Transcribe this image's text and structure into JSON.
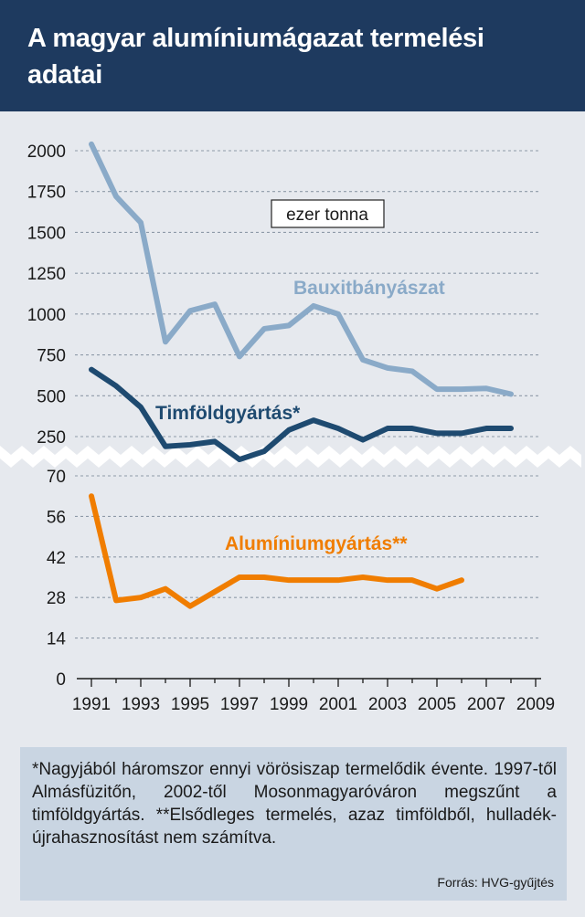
{
  "title": "A magyar alumíniumágazat termelési adatai",
  "unit_label": "ezer tonna",
  "note": "*Nagyjából háromszor ennyi vörösiszap termelődik évente. 1997-től Almásfüzitőn, 2002-től Mosonmagyaróváron megszűnt a timföldgyártás. **Elsődleges termelés, azaz timföldből, hulladék-újrahasznosítást nem számítva.",
  "source": "Forrás: HVG-gyűjtés",
  "colors": {
    "header_bg": "#1e3a5f",
    "bauxit": "#8aaac8",
    "timfold": "#1e4a70",
    "aluminium": "#f07d00",
    "note_bg": "#c9d5e2"
  },
  "chart_data": {
    "type": "line",
    "xlim": [
      1991,
      2009
    ],
    "x_ticks": [
      "1991",
      "1993",
      "1995",
      "1997",
      "1999",
      "2001",
      "2003",
      "2005",
      "2007",
      "2009"
    ],
    "upper_panel": {
      "y_ticks": [
        "250",
        "500",
        "750",
        "1000",
        "1250",
        "1500",
        "1750",
        "2000"
      ],
      "ylim": [
        200,
        2050
      ],
      "series": [
        {
          "name": "Bauxitbányászat",
          "color": "#8aaac8",
          "x": [
            1991,
            1992,
            1993,
            1994,
            1995,
            1996,
            1997,
            1998,
            1999,
            2000,
            2001,
            2002,
            2003,
            2004,
            2005,
            2006,
            2007,
            2008
          ],
          "y": [
            2040,
            1720,
            1560,
            830,
            1020,
            1060,
            740,
            910,
            930,
            1050,
            1000,
            720,
            670,
            650,
            540,
            540,
            545,
            510
          ]
        },
        {
          "name": "Timföldgyártás*",
          "color": "#1e4a70",
          "x": [
            1991,
            1992,
            1993,
            1994,
            1995,
            1996,
            1997,
            1998,
            1999,
            2000,
            2001,
            2002,
            2003,
            2004,
            2005,
            2006,
            2007,
            2008
          ],
          "y": [
            660,
            560,
            430,
            190,
            200,
            220,
            110,
            160,
            290,
            350,
            300,
            230,
            300,
            300,
            270,
            270,
            300,
            300
          ]
        }
      ]
    },
    "lower_panel": {
      "y_ticks": [
        "0",
        "14",
        "28",
        "42",
        "56",
        "70"
      ],
      "ylim": [
        0,
        70
      ],
      "series": [
        {
          "name": "Alumíniumgyártás**",
          "color": "#f07d00",
          "x": [
            1991,
            1992,
            1993,
            1994,
            1995,
            1996,
            1997,
            1998,
            1999,
            2000,
            2001,
            2002,
            2003,
            2004,
            2005,
            2006
          ],
          "y": [
            63,
            27,
            28,
            31,
            25,
            30,
            35,
            35,
            34,
            34,
            34,
            35,
            34,
            34,
            31,
            34
          ]
        }
      ]
    },
    "grid": true,
    "axis_break": true
  }
}
